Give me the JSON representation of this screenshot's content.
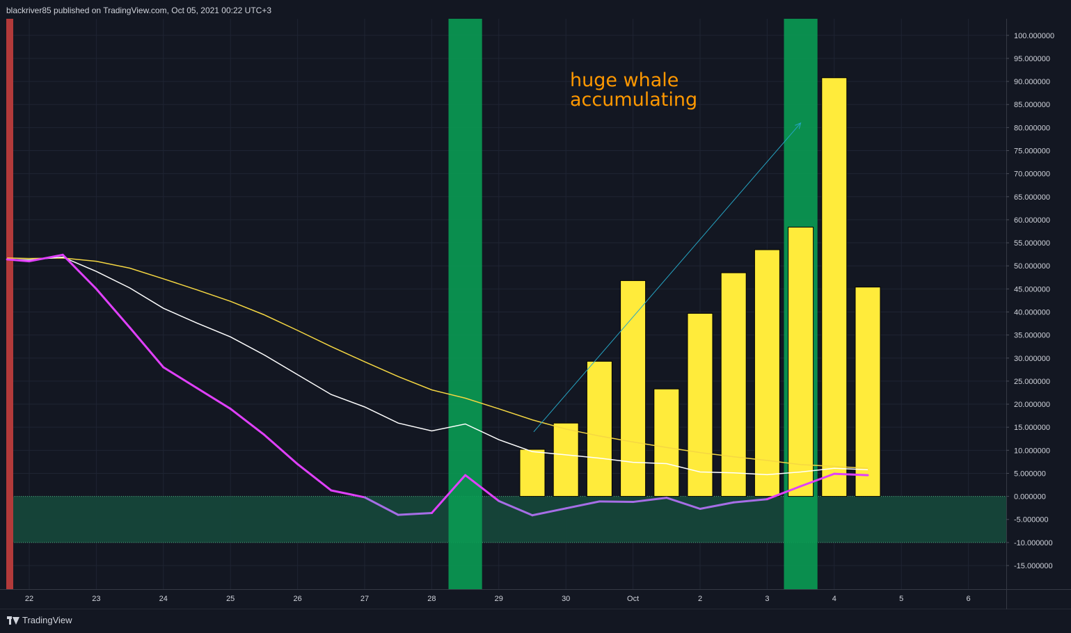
{
  "header": {
    "publisher_text": "blackriver85 published on TradingView.com, Oct 05, 2021 00:22 UTC+3"
  },
  "footer": {
    "brand": "TradingView",
    "logo_icon": "tradingview-logo-icon"
  },
  "colors": {
    "background": "#131722",
    "grid": "#1f2433",
    "bars": "#ffeb3b",
    "bar_outline": "#000000",
    "ma_yellow": "#f5d742",
    "ma_white": "#ffffff",
    "oscillator": "#e040fb",
    "oscillator_below_zero": "#a66ee6",
    "highlight_band": "#0a9b53",
    "zone_fill": "#15463a",
    "left_marker": "#b23a3a",
    "arrow": "#26a6c5",
    "annotation": "#ff9800"
  },
  "chart_data": {
    "type": "bar",
    "title": "",
    "xlabel": "",
    "ylabel": "",
    "ylim": [
      -20,
      102
    ],
    "x_tick_labels": [
      {
        "x": 0,
        "label": "22"
      },
      {
        "x": 1,
        "label": "23"
      },
      {
        "x": 2,
        "label": "24"
      },
      {
        "x": 3,
        "label": "25"
      },
      {
        "x": 4,
        "label": "26"
      },
      {
        "x": 5,
        "label": "27"
      },
      {
        "x": 6,
        "label": "28"
      },
      {
        "x": 7,
        "label": "29"
      },
      {
        "x": 8,
        "label": "30"
      },
      {
        "x": 9,
        "label": "Oct"
      },
      {
        "x": 10,
        "label": "2"
      },
      {
        "x": 11,
        "label": "3"
      },
      {
        "x": 12,
        "label": "4"
      },
      {
        "x": 13,
        "label": "5"
      },
      {
        "x": 14,
        "label": "6"
      }
    ],
    "y_tick_labels": [
      {
        "v": 100,
        "label": "100.000000"
      },
      {
        "v": 95,
        "label": "95.000000"
      },
      {
        "v": 90,
        "label": "90.000000"
      },
      {
        "v": 85,
        "label": "85.000000"
      },
      {
        "v": 80,
        "label": "80.000000"
      },
      {
        "v": 75,
        "label": "75.000000"
      },
      {
        "v": 70,
        "label": "70.000000"
      },
      {
        "v": 65,
        "label": "65.000000"
      },
      {
        "v": 60,
        "label": "60.000000"
      },
      {
        "v": 55,
        "label": "55.000000"
      },
      {
        "v": 50,
        "label": "50.000000"
      },
      {
        "v": 45,
        "label": "45.000000"
      },
      {
        "v": 40,
        "label": "40.000000"
      },
      {
        "v": 35,
        "label": "35.000000"
      },
      {
        "v": 30,
        "label": "30.000000"
      },
      {
        "v": 25,
        "label": "25.000000"
      },
      {
        "v": 20,
        "label": "20.000000"
      },
      {
        "v": 15,
        "label": "15.000000"
      },
      {
        "v": 10,
        "label": "10.000000"
      },
      {
        "v": 5,
        "label": "5.000000"
      },
      {
        "v": 0,
        "label": "0.000000"
      },
      {
        "v": -5,
        "label": "-5.000000"
      },
      {
        "v": -10,
        "label": "-10.000000"
      },
      {
        "v": -15,
        "label": "-15.000000"
      }
    ],
    "bars": [
      {
        "x": 7.5,
        "value": 10.2
      },
      {
        "x": 8.0,
        "value": 15.9
      },
      {
        "x": 8.5,
        "value": 29.3
      },
      {
        "x": 9.0,
        "value": 46.8
      },
      {
        "x": 9.5,
        "value": 23.3
      },
      {
        "x": 10.0,
        "value": 39.7
      },
      {
        "x": 10.5,
        "value": 48.5
      },
      {
        "x": 11.0,
        "value": 53.5
      },
      {
        "x": 11.5,
        "value": 58.4
      },
      {
        "x": 12.0,
        "value": 90.8
      },
      {
        "x": 12.5,
        "value": 45.4
      }
    ],
    "series": [
      {
        "x": [
          -0.33,
          0.0,
          0.5,
          1.0,
          1.5,
          2.0,
          2.5,
          3.0,
          3.5,
          4.0,
          4.5,
          5.0,
          5.5,
          6.0,
          6.5,
          7.0,
          7.5,
          8.0,
          8.5,
          9.0,
          9.5,
          10.0,
          10.5,
          11.0,
          11.5,
          12.0,
          12.5
        ],
        "values": [
          51.7,
          51.6,
          51.7,
          51.0,
          49.5,
          47.2,
          44.8,
          42.3,
          39.4,
          36.0,
          32.5,
          29.2,
          26.0,
          23.1,
          21.3,
          19.0,
          16.6,
          14.6,
          13.1,
          11.8,
          10.6,
          9.5,
          8.6,
          7.8,
          6.9,
          6.5,
          6.1
        ]
      },
      {
        "x": [
          -0.33,
          0.0,
          0.5,
          1.0,
          1.5,
          2.0,
          2.5,
          3.0,
          3.5,
          4.0,
          4.5,
          5.0,
          5.5,
          6.0,
          6.5,
          7.0,
          7.5,
          8.0,
          8.5,
          9.0,
          9.5,
          10.0,
          10.5,
          11.0,
          11.5,
          12.0,
          12.5
        ],
        "values": [
          51.4,
          51.3,
          51.9,
          48.8,
          45.2,
          40.8,
          37.6,
          34.6,
          30.7,
          26.4,
          22.1,
          19.4,
          15.9,
          14.2,
          15.7,
          12.3,
          9.7,
          9.0,
          8.3,
          7.4,
          7.1,
          5.3,
          5.1,
          4.7,
          5.3,
          6.1,
          5.8
        ]
      },
      {
        "x": [
          -0.33,
          0.0,
          0.5,
          1.0,
          1.5,
          2.0,
          2.5,
          3.0,
          3.5,
          4.0,
          4.5,
          5.0,
          5.5,
          6.0,
          6.5,
          7.0,
          7.5,
          8.0,
          8.5,
          9.0,
          9.5,
          10.0,
          10.5,
          11.0,
          11.5,
          12.0,
          12.5
        ],
        "values": [
          51.4,
          51.0,
          52.4,
          45.0,
          36.6,
          28.0,
          23.5,
          19.0,
          13.4,
          7.0,
          1.3,
          -0.2,
          -4.0,
          -3.6,
          4.6,
          -1.0,
          -4.1,
          -2.6,
          -1.1,
          -1.2,
          -0.3,
          -2.7,
          -1.3,
          -0.6,
          2.2,
          4.9,
          4.6
        ]
      }
    ],
    "highlight_bands": [
      {
        "x_from": 6.25,
        "x_to": 6.75
      },
      {
        "x_from": 11.25,
        "x_to": 11.75
      }
    ],
    "zone": {
      "y_from": -10,
      "y_to": 0
    },
    "annotation": {
      "lines": [
        "huge whale",
        "accumulating"
      ],
      "arrow": {
        "x_from": 7.52,
        "y_from": 14,
        "x_to": 11.5,
        "y_to": 81
      }
    }
  }
}
